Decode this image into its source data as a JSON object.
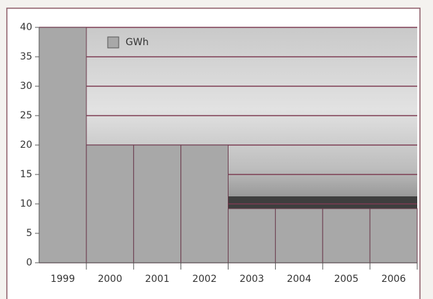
{
  "chart_data": {
    "type": "bar",
    "categories": [
      "1999",
      "2000",
      "2001",
      "2002",
      "2003",
      "2004",
      "2005",
      "2006"
    ],
    "series": [
      {
        "name": "GWh",
        "color": "#a8a8a8",
        "values": [
          40,
          20,
          20,
          20,
          9.2,
          9.2,
          9.2,
          9.2
        ]
      }
    ],
    "ylim": [
      0,
      40
    ],
    "yticks": [
      0,
      5,
      10,
      15,
      20,
      25,
      30,
      35,
      40
    ],
    "grid": true,
    "legend": "top-left"
  }
}
